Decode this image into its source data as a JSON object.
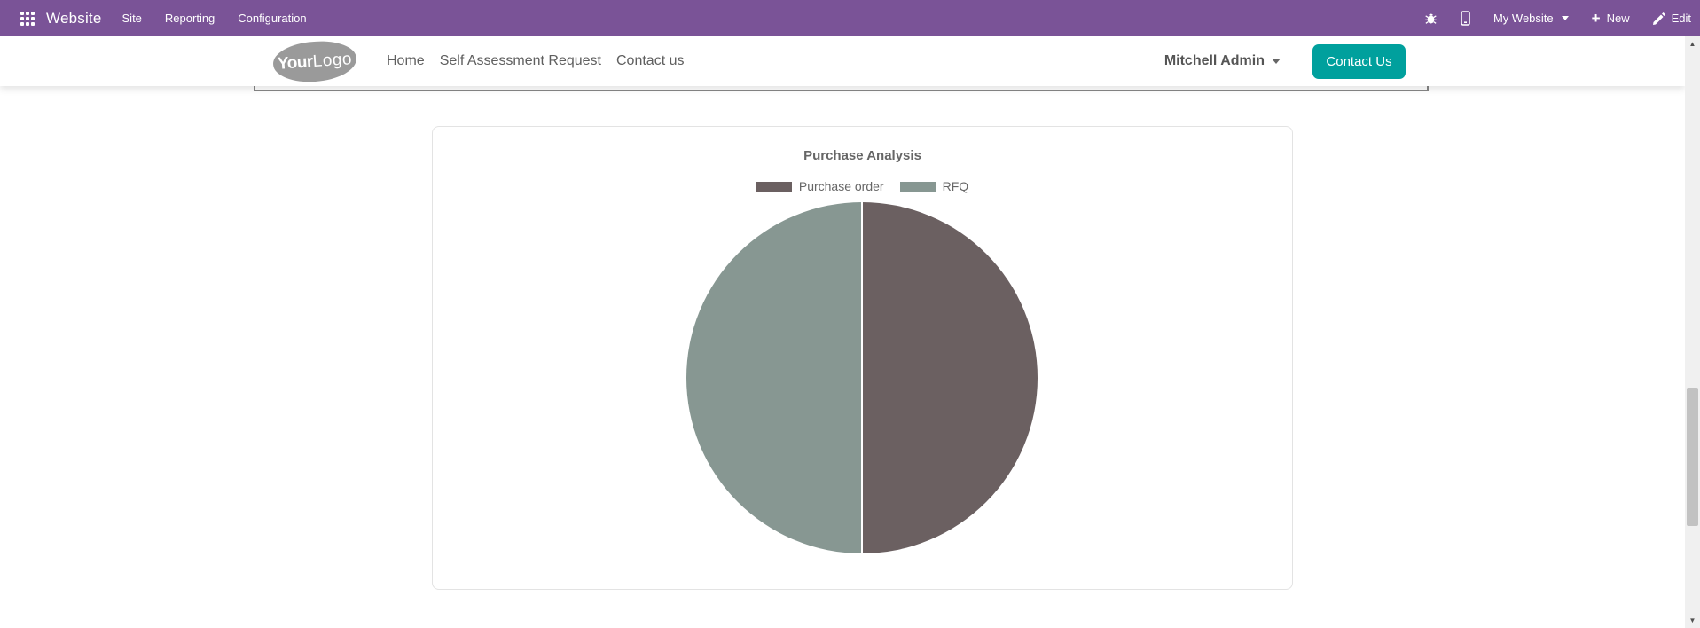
{
  "topbar": {
    "app_name": "Website",
    "menus": [
      "Site",
      "Reporting",
      "Configuration"
    ],
    "website_selector": "My Website",
    "new_label": "New",
    "edit_label": "Edit"
  },
  "navbar": {
    "logo": {
      "bold": "Your",
      "light": "Logo"
    },
    "links": [
      "Home",
      "Self Assessment Request",
      "Contact us"
    ],
    "user_name": "Mitchell Admin",
    "contact_button": "Contact Us"
  },
  "chart_data": {
    "type": "pie",
    "title": "Purchase Analysis",
    "categories": [
      "Purchase order",
      "RFQ"
    ],
    "values": [
      50,
      50
    ],
    "colors": [
      "#6b6061",
      "#879792"
    ],
    "legend_position": "top",
    "slice_border_color": "#ffffff",
    "note": "two equal halves; Purchase order = right half, RFQ = left half"
  },
  "colors": {
    "topbar_bg": "#7a5397",
    "contact_button_bg": "#00a09d",
    "chart_text": "#666666"
  },
  "scrollbar": {
    "up_glyph": "▲",
    "down_glyph": "▼"
  }
}
